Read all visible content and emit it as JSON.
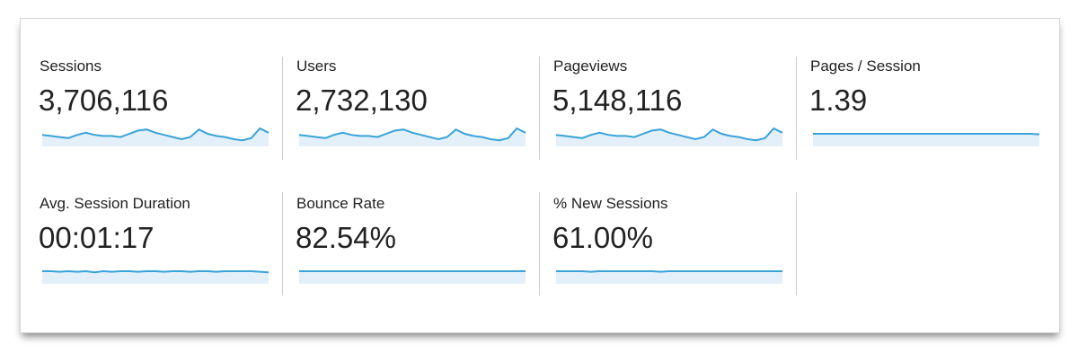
{
  "colors": {
    "line": "#3aa3d9",
    "fill": "#e3f0fa"
  },
  "metrics": [
    {
      "label": "Sessions",
      "value": "3,706,116",
      "spark": [
        19,
        18,
        17,
        16,
        19,
        21,
        19,
        18,
        18,
        17,
        20,
        23,
        24,
        21,
        19,
        17,
        15,
        17,
        24,
        20,
        18,
        17,
        15,
        14,
        16,
        25,
        21
      ]
    },
    {
      "label": "Users",
      "value": "2,732,130",
      "spark": [
        19,
        18,
        17,
        16,
        19,
        21,
        19,
        18,
        18,
        17,
        20,
        23,
        24,
        21,
        19,
        17,
        15,
        17,
        24,
        20,
        18,
        17,
        15,
        14,
        16,
        25,
        21
      ]
    },
    {
      "label": "Pageviews",
      "value": "5,148,116",
      "spark": [
        19,
        18,
        17,
        16,
        19,
        21,
        19,
        18,
        18,
        17,
        20,
        23,
        24,
        21,
        19,
        17,
        15,
        17,
        24,
        20,
        18,
        17,
        15,
        14,
        16,
        25,
        21
      ]
    },
    {
      "label": "Pages / Session",
      "value": "1.39",
      "spark": [
        20,
        20,
        20,
        20,
        20,
        20,
        20,
        20,
        20,
        20,
        20,
        20,
        20,
        20,
        20,
        20,
        20,
        20,
        20,
        20,
        20,
        20,
        20,
        20,
        20,
        20,
        19.5
      ]
    },
    {
      "label": "Avg. Session Duration",
      "value": "00:01:17",
      "spark": [
        20,
        20,
        19.5,
        20,
        19.5,
        20,
        19,
        20,
        19.5,
        20,
        20,
        19.5,
        20,
        20,
        19.5,
        20,
        20,
        19.5,
        20,
        20,
        19.5,
        20,
        20,
        20,
        20,
        19.5,
        19
      ]
    },
    {
      "label": "Bounce Rate",
      "value": "82.54%",
      "spark": [
        20,
        20,
        20,
        20,
        20,
        20,
        20,
        20,
        20,
        20,
        20,
        20,
        20,
        20,
        20,
        20,
        20,
        20,
        20,
        20,
        20,
        20,
        20,
        20,
        20,
        20,
        20
      ]
    },
    {
      "label": "% New Sessions",
      "value": "61.00%",
      "spark": [
        20,
        20,
        20,
        20,
        19.5,
        20,
        20,
        20,
        20,
        20,
        20,
        20,
        19.5,
        20,
        20,
        20,
        20,
        20,
        20,
        20,
        20,
        20,
        20,
        20,
        20,
        20,
        20
      ]
    }
  ]
}
